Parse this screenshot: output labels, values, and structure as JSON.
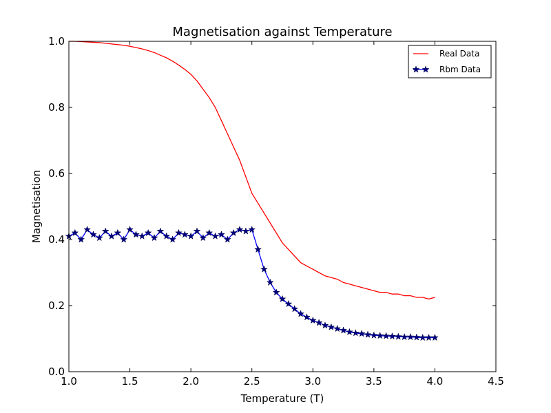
{
  "chart_data": {
    "type": "line",
    "title": "Magnetisation against Temperature",
    "xlabel": "Temperature (T)",
    "ylabel": "Magnetisation",
    "xlim": [
      1.0,
      4.5
    ],
    "ylim": [
      0.0,
      1.0
    ],
    "xticks": [
      "1.0",
      "1.5",
      "2.0",
      "2.5",
      "3.0",
      "3.5",
      "4.0",
      "4.5"
    ],
    "yticks": [
      "0.0",
      "0.2",
      "0.4",
      "0.6",
      "0.8",
      "1.0"
    ],
    "legend_position": "top-right",
    "grid": false,
    "series": [
      {
        "name": "Real Data",
        "color": "#ff0000",
        "marker": "none",
        "x": [
          1.0,
          1.05,
          1.1,
          1.15,
          1.2,
          1.25,
          1.3,
          1.35,
          1.4,
          1.45,
          1.5,
          1.55,
          1.6,
          1.65,
          1.7,
          1.75,
          1.8,
          1.85,
          1.9,
          1.95,
          2.0,
          2.05,
          2.1,
          2.15,
          2.2,
          2.25,
          2.3,
          2.35,
          2.4,
          2.45,
          2.5,
          2.55,
          2.6,
          2.65,
          2.7,
          2.75,
          2.8,
          2.85,
          2.9,
          2.95,
          3.0,
          3.05,
          3.1,
          3.15,
          3.2,
          3.25,
          3.3,
          3.35,
          3.4,
          3.45,
          3.5,
          3.55,
          3.6,
          3.65,
          3.7,
          3.75,
          3.8,
          3.85,
          3.9,
          3.95,
          4.0
        ],
        "y": [
          1.0,
          1.0,
          0.999,
          0.998,
          0.997,
          0.996,
          0.994,
          0.992,
          0.99,
          0.988,
          0.985,
          0.981,
          0.977,
          0.972,
          0.966,
          0.958,
          0.95,
          0.94,
          0.928,
          0.915,
          0.9,
          0.88,
          0.855,
          0.83,
          0.8,
          0.76,
          0.72,
          0.68,
          0.64,
          0.59,
          0.54,
          0.51,
          0.48,
          0.45,
          0.42,
          0.39,
          0.37,
          0.35,
          0.33,
          0.32,
          0.31,
          0.3,
          0.29,
          0.285,
          0.28,
          0.27,
          0.265,
          0.26,
          0.255,
          0.25,
          0.245,
          0.24,
          0.24,
          0.235,
          0.235,
          0.23,
          0.23,
          0.225,
          0.225,
          0.22,
          0.225
        ]
      },
      {
        "name": "Rbm Data",
        "color": "#0000ff",
        "marker": "star",
        "x": [
          1.0,
          1.05,
          1.1,
          1.15,
          1.2,
          1.25,
          1.3,
          1.35,
          1.4,
          1.45,
          1.5,
          1.55,
          1.6,
          1.65,
          1.7,
          1.75,
          1.8,
          1.85,
          1.9,
          1.95,
          2.0,
          2.05,
          2.1,
          2.15,
          2.2,
          2.25,
          2.3,
          2.35,
          2.4,
          2.45,
          2.5,
          2.55,
          2.6,
          2.65,
          2.7,
          2.75,
          2.8,
          2.85,
          2.9,
          2.95,
          3.0,
          3.05,
          3.1,
          3.15,
          3.2,
          3.25,
          3.3,
          3.35,
          3.4,
          3.45,
          3.5,
          3.55,
          3.6,
          3.65,
          3.7,
          3.75,
          3.8,
          3.85,
          3.9,
          3.95,
          4.0
        ],
        "y": [
          0.41,
          0.42,
          0.4,
          0.43,
          0.415,
          0.405,
          0.425,
          0.41,
          0.42,
          0.4,
          0.43,
          0.415,
          0.41,
          0.42,
          0.405,
          0.425,
          0.41,
          0.4,
          0.42,
          0.415,
          0.41,
          0.425,
          0.405,
          0.42,
          0.41,
          0.415,
          0.4,
          0.42,
          0.43,
          0.425,
          0.43,
          0.37,
          0.31,
          0.27,
          0.24,
          0.22,
          0.205,
          0.19,
          0.175,
          0.165,
          0.155,
          0.148,
          0.14,
          0.135,
          0.13,
          0.125,
          0.12,
          0.117,
          0.115,
          0.112,
          0.11,
          0.109,
          0.108,
          0.107,
          0.106,
          0.105,
          0.105,
          0.104,
          0.103,
          0.103,
          0.103
        ]
      }
    ]
  }
}
